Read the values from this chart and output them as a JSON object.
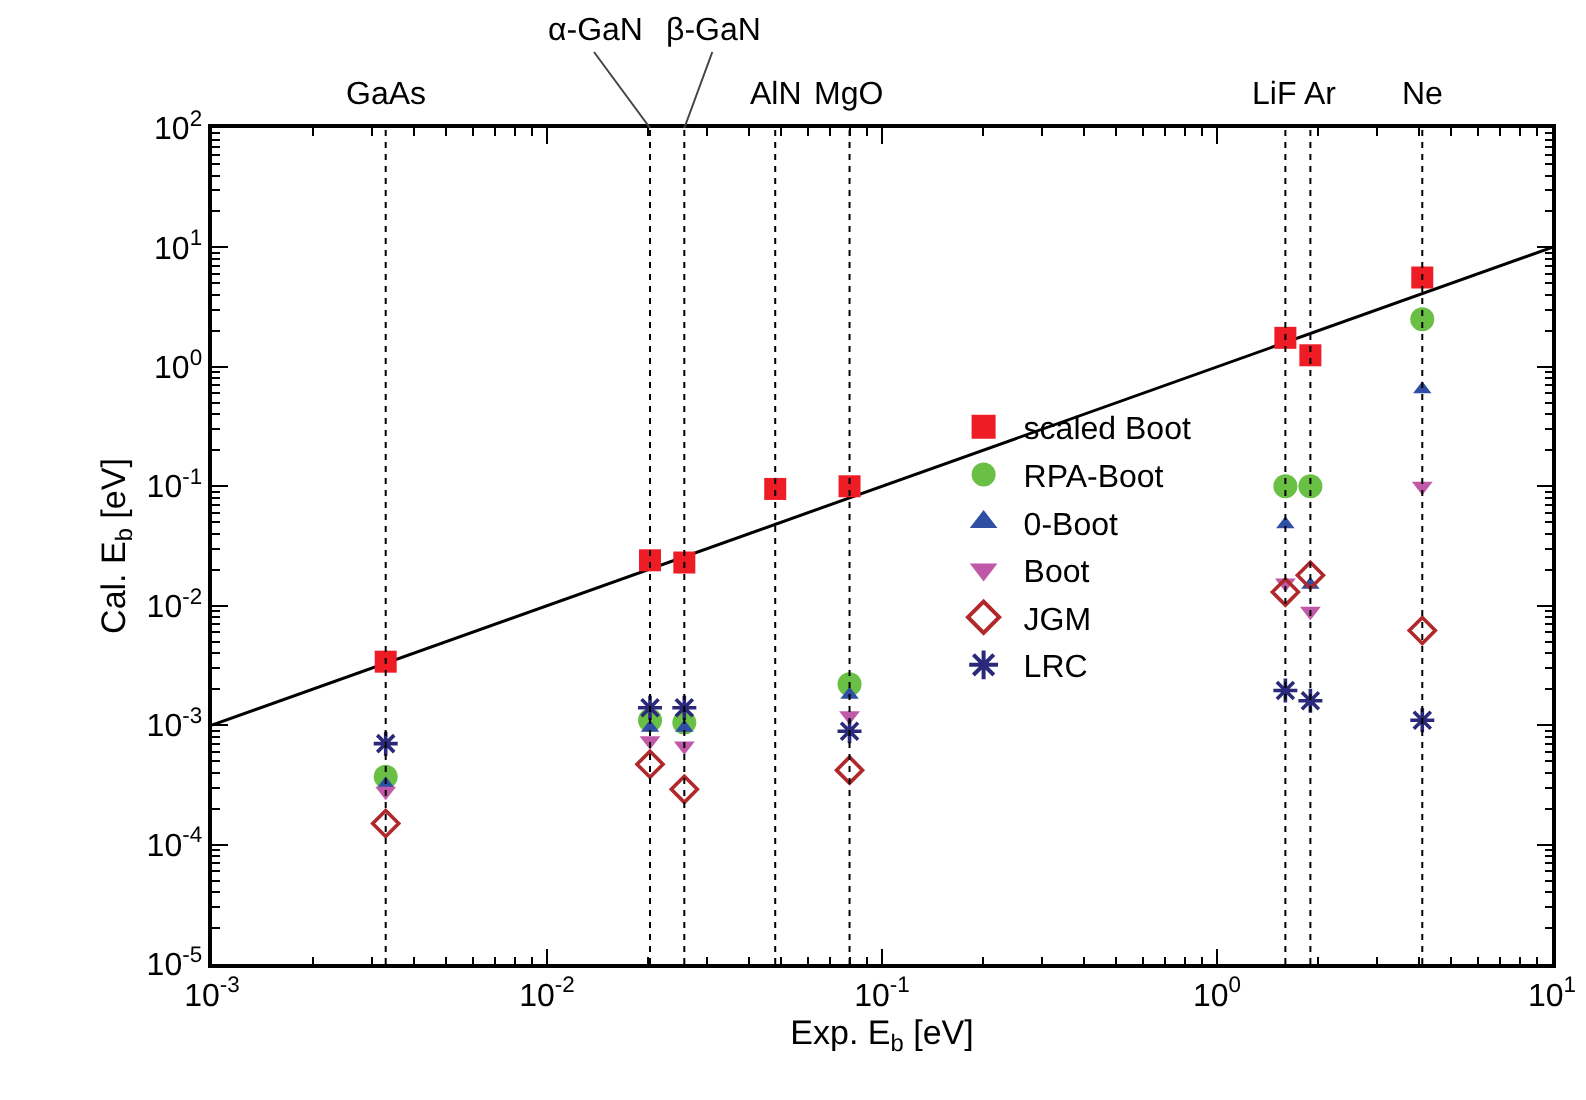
{
  "chart_data": {
    "type": "scatter",
    "xlabel": "Exp. E$_{b}$ [eV]",
    "ylabel": "Cal. E$_{b}$ [eV]",
    "log": "xy",
    "grid": false,
    "legend": "center",
    "x": [
      0.0033,
      0.0203,
      0.0257,
      0.048,
      0.08,
      1.6,
      1.9,
      4.1
    ],
    "xlim": [
      0.001,
      10
    ],
    "ylim": [
      1e-05,
      100
    ],
    "xticks": [
      {
        "value": 0.001,
        "label": "10$^{-3}$"
      },
      {
        "value": 0.01,
        "label": "10$^{-2}$"
      },
      {
        "value": 0.1,
        "label": "10$^{-1}$"
      },
      {
        "value": 1,
        "label": "10$^{0}$"
      },
      {
        "value": 10,
        "label": "10$^{1}$"
      }
    ],
    "yticks": [
      {
        "value": 1e-05,
        "label": "10$^{-5}$"
      },
      {
        "value": 0.0001,
        "label": "10$^{-4}$"
      },
      {
        "value": 0.001,
        "label": "10$^{-3}$"
      },
      {
        "value": 0.01,
        "label": "10$^{-2}$"
      },
      {
        "value": 0.1,
        "label": "10$^{-1}$"
      },
      {
        "value": 1,
        "label": "10$^{0}$"
      },
      {
        "value": 10,
        "label": "10$^{1}$"
      },
      {
        "value": 100,
        "label": "10$^{2}$"
      }
    ],
    "series": [
      {
        "type": "line",
        "color": "#000000",
        "x": [
          0.001,
          10
        ],
        "values": [
          0.001,
          10
        ],
        "marker": "none",
        "line_style": "solid"
      },
      {
        "name": "scaled Boot",
        "color": "#ee1c25",
        "marker": "square",
        "values": [
          0.0034,
          0.024,
          0.023,
          0.095,
          0.1,
          1.75,
          1.25,
          5.6
        ]
      },
      {
        "name": "RPA-Boot",
        "color": "#6abf45",
        "marker": "circle",
        "values": [
          0.00037,
          0.0011,
          0.00105,
          null,
          0.0022,
          0.1,
          0.1,
          2.5
        ]
      },
      {
        "name": "0-Boot",
        "color": "#2e4fa3",
        "marker": "triangle",
        "values": [
          0.00032,
          0.00095,
          0.00095,
          null,
          0.0018,
          0.048,
          0.015,
          0.65
        ]
      },
      {
        "name": "Boot",
        "color": "#c05aa8",
        "marker": "triangle-down",
        "values": [
          0.00028,
          0.00074,
          0.00067,
          null,
          0.0012,
          0.0155,
          0.009,
          0.1
        ]
      },
      {
        "name": "JGM",
        "color": "#b0282a",
        "marker": "diamond",
        "values": [
          0.00015,
          0.00047,
          0.00029,
          null,
          0.00042,
          0.013,
          0.018,
          0.0062
        ]
      },
      {
        "name": "LRC",
        "color": "#2b2a7a",
        "marker": "cross",
        "values": [
          0.0007,
          0.0014,
          0.0014,
          null,
          0.00089,
          0.00195,
          0.0016,
          0.0011
        ]
      }
    ],
    "ref_lines": [
      {
        "axis": "x",
        "value": 0.0033,
        "label": "GaAs",
        "line_style": "dotted"
      },
      {
        "axis": "x",
        "value": 0.0203,
        "label": "α-GaN",
        "line_style": "dotted"
      },
      {
        "axis": "x",
        "value": 0.0257,
        "label": "β-GaN",
        "line_style": "dotted"
      },
      {
        "axis": "x",
        "value": 0.048,
        "label": "AlN",
        "line_style": "dotted"
      },
      {
        "axis": "x",
        "value": 0.08,
        "label": "MgO",
        "line_style": "dotted"
      },
      {
        "axis": "x",
        "value": 1.6,
        "label": "LiF",
        "line_style": "dotted"
      },
      {
        "axis": "x",
        "value": 1.9,
        "label": "Ar",
        "line_style": "dotted"
      },
      {
        "axis": "x",
        "value": 4.1,
        "label": "Ne",
        "line_style": "dotted"
      }
    ]
  }
}
